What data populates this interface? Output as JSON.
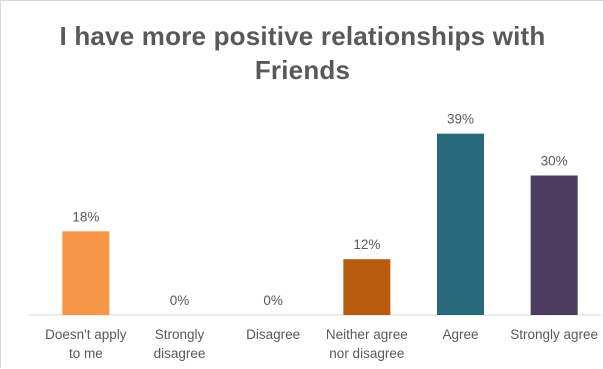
{
  "chart_data": {
    "type": "bar",
    "title_line1": "I have more positive relationships with",
    "title_line2": "Friends",
    "xlabel": "",
    "ylabel": "",
    "ylim": [
      0,
      40
    ],
    "value_format": "percent",
    "grid": false,
    "legend": "none",
    "categories": [
      [
        "Doesn't apply",
        "to me"
      ],
      [
        "Strongly",
        "disagree"
      ],
      [
        "Disagree"
      ],
      [
        "Neither agree",
        "nor disagree"
      ],
      [
        "Agree"
      ],
      [
        "Strongly agree"
      ]
    ],
    "values": [
      18,
      0,
      0,
      12,
      39,
      30
    ],
    "data_labels": [
      "18%",
      "0%",
      "0%",
      "12%",
      "39%",
      "30%"
    ],
    "colors": [
      "#f79646",
      "#f79646",
      "#f79646",
      "#b75b0c",
      "#27697b",
      "#4b3b5f"
    ],
    "axis_color": "#d9d9d9",
    "text_color": "#595959"
  }
}
